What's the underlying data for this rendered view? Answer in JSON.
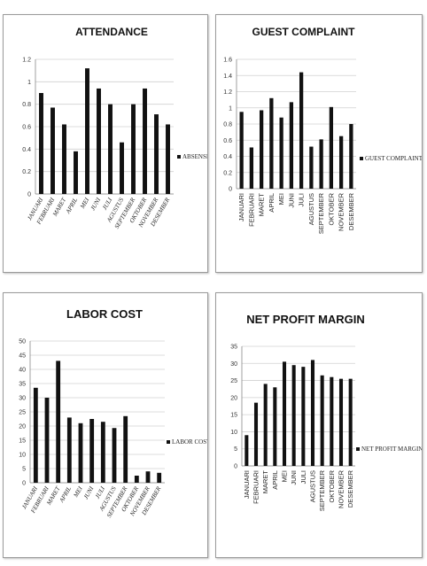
{
  "chart_data": [
    {
      "type": "bar",
      "title": "ATTENDANCE",
      "categories": [
        "JANUARI",
        "FEBRUARI",
        "MARET",
        "APRIL",
        "MEI",
        "JUNI",
        "JULI",
        "AGUSTUS",
        "SEPTEMBER",
        "OKTOBER",
        "NOVEMBER",
        "DESEMBER"
      ],
      "series": [
        {
          "name": "ABSENSI",
          "values": [
            0.9,
            0.77,
            0.62,
            0.38,
            1.12,
            0.94,
            0.8,
            0.46,
            0.8,
            0.94,
            0.71,
            0.62
          ]
        }
      ],
      "yticks": [
        "0",
        "0.2",
        "0.4",
        "0.6",
        "0.8",
        "1",
        "1.2"
      ],
      "ylim": [
        0,
        1.2
      ],
      "grid": true,
      "legend": "right",
      "tick_style": "italic-diagonal"
    },
    {
      "type": "bar",
      "title": "GUEST COMPLAINT",
      "categories": [
        "JANUARI",
        "FEBRUARI",
        "MARET",
        "APRIL",
        "MEI",
        "JUNI",
        "JULI",
        "AGUSTUS",
        "SEPTEMBER",
        "OKTOBER",
        "NOVEMBER",
        "DESEMBER"
      ],
      "series": [
        {
          "name": "GUEST COMPLAINT",
          "values": [
            0.95,
            0.51,
            0.97,
            1.12,
            0.88,
            1.07,
            1.44,
            0.52,
            0.61,
            1.01,
            0.65,
            0.8
          ]
        }
      ],
      "yticks": [
        "0",
        "0.2",
        "0.4",
        "0.6",
        "0.8",
        "1",
        "1.2",
        "1.4",
        "1.6"
      ],
      "ylim": [
        0,
        1.6
      ],
      "grid": true,
      "legend": "right",
      "tick_style": "vertical"
    },
    {
      "type": "bar",
      "title": "LABOR COST",
      "categories": [
        "JANUARI",
        "FEBRUARI",
        "MARET",
        "APRIL",
        "MEI",
        "JUNI",
        "JULI",
        "AGUSTUS",
        "SEPTEMBER",
        "OKTOBER",
        "NOVEMBER",
        "DESEMBER"
      ],
      "series": [
        {
          "name": "LABOR COST",
          "values": [
            33.5,
            30,
            43,
            23,
            21,
            22.5,
            21.5,
            19.3,
            23.5,
            2.5,
            4,
            3.5
          ]
        }
      ],
      "yticks": [
        "0",
        "5",
        "10",
        "15",
        "20",
        "25",
        "30",
        "35",
        "40",
        "45",
        "50"
      ],
      "ylim": [
        0,
        50
      ],
      "grid": true,
      "legend": "right",
      "tick_style": "italic-diagonal"
    },
    {
      "type": "bar",
      "title": "NET PROFIT MARGIN",
      "categories": [
        "JANUARI",
        "FEBRUARI",
        "MARET",
        "APRIL",
        "MEI",
        "JUNI",
        "JULI",
        "AGUSTUS",
        "SEPTEMBER",
        "OKTOBER",
        "NOVEMBER",
        "DESEMBER"
      ],
      "series": [
        {
          "name": "NET PROFIT MARGIN",
          "values": [
            9,
            18.5,
            24,
            23,
            30.5,
            29.5,
            29,
            31,
            26.5,
            26,
            25.5,
            25.5
          ]
        }
      ],
      "yticks": [
        "0",
        "5",
        "10",
        "15",
        "20",
        "25",
        "30",
        "35"
      ],
      "ylim": [
        0,
        35
      ],
      "grid": true,
      "legend": "right",
      "tick_style": "vertical"
    }
  ]
}
